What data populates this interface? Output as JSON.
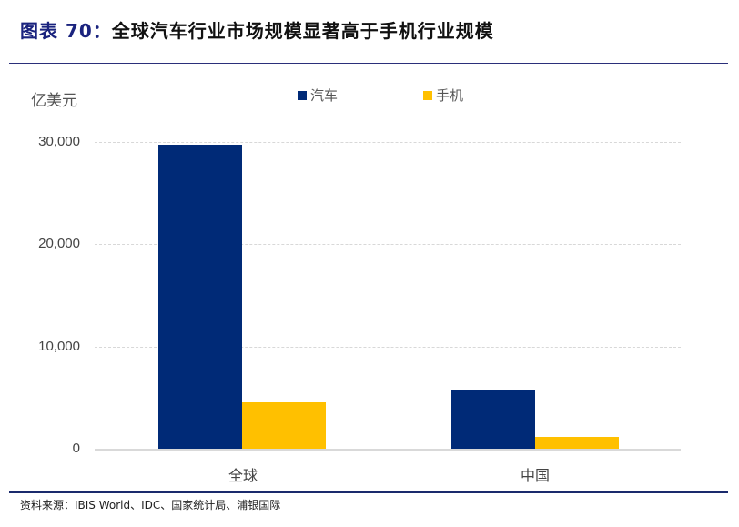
{
  "header": {
    "prefix": "图表 70：",
    "title": "全球汽车行业市场规模显著高于手机行业规模"
  },
  "footer": {
    "source": "资料来源：IBIS World、IDC、国家统计局、浦银国际"
  },
  "colors": {
    "car": "#002a77",
    "phone": "#ffc000"
  },
  "chart_data": {
    "type": "bar",
    "title": "全球汽车行业市场规模显著高于手机行业规模",
    "ylabel": "亿美元",
    "xlabel": "",
    "categories": [
      "全球",
      "中国"
    ],
    "series": [
      {
        "name": "汽车",
        "color": "#002a77",
        "values": [
          29700,
          5700
        ]
      },
      {
        "name": "手机",
        "color": "#ffc000",
        "values": [
          4550,
          1150
        ]
      }
    ],
    "yticks": [
      "0",
      "10,000",
      "20,000",
      "30,000"
    ],
    "ylim": [
      0,
      30000
    ],
    "grid": true,
    "legend_position": "top"
  }
}
